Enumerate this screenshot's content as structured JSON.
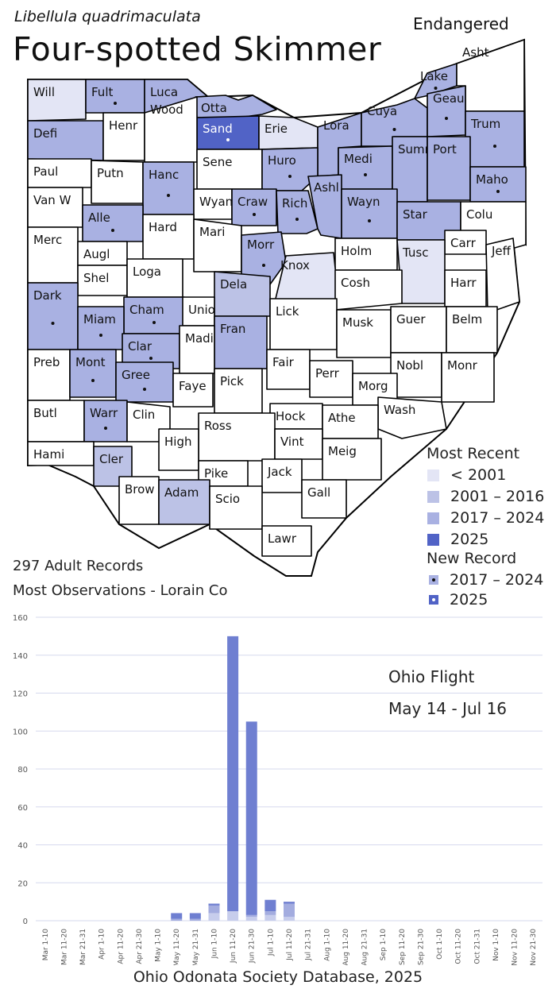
{
  "header": {
    "scientific_name": "Libellula quadrimaculata",
    "common_name": "Four-spotted Skimmer",
    "status": "Endangered"
  },
  "colors": {
    "pre_2001": "#e3e5f5",
    "c2001_2016": "#bcc2e6",
    "c2017_2024": "#a9b1e2",
    "c2025": "#5163c6",
    "none": "#ffffff",
    "outline": "#000000",
    "bar_older": "#c7cdec",
    "bar_2017_2024": "#a3acdf",
    "bar_2025": "#6f7fd1",
    "grid": "#d6d9ee"
  },
  "map": {
    "counties": [
      {
        "name": "Will",
        "cat": "pre_2001",
        "dot": false
      },
      {
        "name": "Fult",
        "cat": "c2017_2024",
        "dot": true
      },
      {
        "name": "Luca",
        "cat": "c2017_2024",
        "dot": false
      },
      {
        "name": "Otta",
        "cat": "c2017_2024",
        "dot": false
      },
      {
        "name": "Sand",
        "cat": "c2025",
        "dot": true
      },
      {
        "name": "Erie",
        "cat": "pre_2001",
        "dot": false
      },
      {
        "name": "Lake",
        "cat": "c2017_2024",
        "dot": true
      },
      {
        "name": "Asht",
        "cat": "none",
        "dot": false
      },
      {
        "name": "Defi",
        "cat": "c2017_2024",
        "dot": false
      },
      {
        "name": "Henr",
        "cat": "none",
        "dot": false
      },
      {
        "name": "Wood",
        "cat": "none",
        "dot": false
      },
      {
        "name": "Lora",
        "cat": "c2017_2024",
        "dot": true
      },
      {
        "name": "Cuya",
        "cat": "c2017_2024",
        "dot": true
      },
      {
        "name": "Geau",
        "cat": "c2017_2024",
        "dot": true
      },
      {
        "name": "Trum",
        "cat": "c2017_2024",
        "dot": true
      },
      {
        "name": "Paul",
        "cat": "none",
        "dot": false
      },
      {
        "name": "Putn",
        "cat": "none",
        "dot": false
      },
      {
        "name": "Sene",
        "cat": "none",
        "dot": false
      },
      {
        "name": "Huro",
        "cat": "c2017_2024",
        "dot": true
      },
      {
        "name": "Medi",
        "cat": "c2017_2024",
        "dot": true
      },
      {
        "name": "Summ",
        "cat": "c2017_2024",
        "dot": false
      },
      {
        "name": "Port",
        "cat": "c2017_2024",
        "dot": false
      },
      {
        "name": "Hanc",
        "cat": "c2017_2024",
        "dot": true
      },
      {
        "name": "Maho",
        "cat": "c2017_2024",
        "dot": true
      },
      {
        "name": "Van W",
        "cat": "none",
        "dot": false
      },
      {
        "name": "Wyan",
        "cat": "none",
        "dot": false
      },
      {
        "name": "Craw",
        "cat": "c2017_2024",
        "dot": true
      },
      {
        "name": "Rich",
        "cat": "c2017_2024",
        "dot": true
      },
      {
        "name": "Ashl",
        "cat": "c2017_2024",
        "dot": false
      },
      {
        "name": "Wayn",
        "cat": "c2017_2024",
        "dot": true
      },
      {
        "name": "Star",
        "cat": "c2017_2024",
        "dot": false
      },
      {
        "name": "Colu",
        "cat": "none",
        "dot": false
      },
      {
        "name": "Alle",
        "cat": "c2017_2024",
        "dot": true
      },
      {
        "name": "Hard",
        "cat": "none",
        "dot": false
      },
      {
        "name": "Merc",
        "cat": "none",
        "dot": false
      },
      {
        "name": "Augl",
        "cat": "none",
        "dot": false
      },
      {
        "name": "Mari",
        "cat": "none",
        "dot": false
      },
      {
        "name": "Morr",
        "cat": "c2017_2024",
        "dot": true
      },
      {
        "name": "Holm",
        "cat": "none",
        "dot": false
      },
      {
        "name": "Carr",
        "cat": "none",
        "dot": false
      },
      {
        "name": "Tusc",
        "cat": "pre_2001",
        "dot": false
      },
      {
        "name": "Jeff",
        "cat": "none",
        "dot": false
      },
      {
        "name": "Shel",
        "cat": "none",
        "dot": false
      },
      {
        "name": "Loga",
        "cat": "none",
        "dot": false
      },
      {
        "name": "Knox",
        "cat": "pre_2001",
        "dot": false
      },
      {
        "name": "Dela",
        "cat": "c2001_2016",
        "dot": false
      },
      {
        "name": "Cosh",
        "cat": "none",
        "dot": false
      },
      {
        "name": "Harr",
        "cat": "none",
        "dot": false
      },
      {
        "name": "Dark",
        "cat": "c2017_2024",
        "dot": true
      },
      {
        "name": "Cham",
        "cat": "c2017_2024",
        "dot": true
      },
      {
        "name": "Unio",
        "cat": "none",
        "dot": false
      },
      {
        "name": "Lick",
        "cat": "none",
        "dot": false
      },
      {
        "name": "Miam",
        "cat": "c2017_2024",
        "dot": true
      },
      {
        "name": "Musk",
        "cat": "none",
        "dot": false
      },
      {
        "name": "Guer",
        "cat": "none",
        "dot": false
      },
      {
        "name": "Belm",
        "cat": "none",
        "dot": false
      },
      {
        "name": "Fran",
        "cat": "c2017_2024",
        "dot": false
      },
      {
        "name": "Clar",
        "cat": "c2017_2024",
        "dot": true
      },
      {
        "name": "Madi",
        "cat": "none",
        "dot": false
      },
      {
        "name": "Fair",
        "cat": "none",
        "dot": false
      },
      {
        "name": "Preb",
        "cat": "none",
        "dot": false
      },
      {
        "name": "Mont",
        "cat": "c2017_2024",
        "dot": true
      },
      {
        "name": "Perr",
        "cat": "none",
        "dot": false
      },
      {
        "name": "Nobl",
        "cat": "none",
        "dot": false
      },
      {
        "name": "Monr",
        "cat": "none",
        "dot": false
      },
      {
        "name": "Gree",
        "cat": "c2017_2024",
        "dot": true
      },
      {
        "name": "Pick",
        "cat": "none",
        "dot": false
      },
      {
        "name": "Morg",
        "cat": "none",
        "dot": false
      },
      {
        "name": "Faye",
        "cat": "none",
        "dot": false
      },
      {
        "name": "Wash",
        "cat": "none",
        "dot": false
      },
      {
        "name": "Butl",
        "cat": "none",
        "dot": false
      },
      {
        "name": "Warr",
        "cat": "c2017_2024",
        "dot": true
      },
      {
        "name": "Clin",
        "cat": "none",
        "dot": false
      },
      {
        "name": "Hock",
        "cat": "none",
        "dot": false
      },
      {
        "name": "Ross",
        "cat": "none",
        "dot": false
      },
      {
        "name": "Athe",
        "cat": "none",
        "dot": false
      },
      {
        "name": "Hami",
        "cat": "none",
        "dot": false
      },
      {
        "name": "High",
        "cat": "none",
        "dot": false
      },
      {
        "name": "Vint",
        "cat": "none",
        "dot": false
      },
      {
        "name": "Cler",
        "cat": "c2001_2016",
        "dot": false
      },
      {
        "name": "Meig",
        "cat": "none",
        "dot": false
      },
      {
        "name": "Pike",
        "cat": "none",
        "dot": false
      },
      {
        "name": "Jack",
        "cat": "none",
        "dot": false
      },
      {
        "name": "Brow",
        "cat": "none",
        "dot": false
      },
      {
        "name": "Adam",
        "cat": "c2001_2016",
        "dot": false
      },
      {
        "name": "Gall",
        "cat": "none",
        "dot": false
      },
      {
        "name": "Scio",
        "cat": "none",
        "dot": false
      },
      {
        "name": "Lawr",
        "cat": "none",
        "dot": false
      }
    ]
  },
  "legend": {
    "most_recent_title": "Most Recent",
    "most_recent": [
      {
        "label": "< 2001",
        "color": "#e3e5f5"
      },
      {
        "label": "2001 – 2016",
        "color": "#bcc2e6"
      },
      {
        "label": "2017 – 2024",
        "color": "#a9b1e2"
      },
      {
        "label": "2025",
        "color": "#5163c6"
      }
    ],
    "new_record_title": "New Record",
    "new_record": [
      {
        "label": "2017 – 2024",
        "color": "#a9b1e2"
      },
      {
        "label": "2025",
        "color": "#5163c6"
      }
    ]
  },
  "stats": {
    "records": "297 Adult Records",
    "most_obs": "Most Observations - Lorain Co"
  },
  "flight": {
    "title": "Ohio Flight",
    "range": "May 14 - Jul 16"
  },
  "footer": "Ohio Odonata Society Database, 2025",
  "chart_data": {
    "type": "bar",
    "stacked": true,
    "categories": [
      "Mar 1-10",
      "Mar 11-20",
      "Mar 21-31",
      "Apr 1-10",
      "Apr 11-20",
      "Apr 21-30",
      "May 1-10",
      "May 11-20",
      "May 21-31",
      "Jun 1-10",
      "Jun 11-20",
      "Jun 21-30",
      "Jul 1-10",
      "Jul 11-20",
      "Jul 21-31",
      "Aug 1-10",
      "Aug 11-20",
      "Aug 21-31",
      "Sep 1-10",
      "Sep 11-20",
      "Sep 21-30",
      "Oct 1-10",
      "Oct 11-20",
      "Oct 21-31",
      "Nov 1-10",
      "Nov 11-20",
      "Nov 21-30"
    ],
    "series": [
      {
        "values": [
          0,
          0,
          0,
          0,
          0,
          0,
          0,
          0,
          0,
          4,
          5,
          2,
          3,
          2,
          0,
          0,
          0,
          0,
          0,
          0,
          0,
          0,
          0,
          0,
          0,
          0,
          0
        ]
      },
      {
        "values": [
          0,
          0,
          0,
          0,
          0,
          0,
          0,
          1,
          1,
          4,
          0,
          1,
          2,
          7,
          0,
          0,
          0,
          0,
          0,
          0,
          0,
          0,
          0,
          0,
          0,
          0,
          0
        ]
      },
      {
        "values": [
          0,
          0,
          0,
          0,
          0,
          0,
          0,
          3,
          3,
          1,
          145,
          102,
          6,
          1,
          0,
          0,
          0,
          0,
          0,
          0,
          0,
          0,
          0,
          0,
          0,
          0,
          0
        ]
      }
    ],
    "ylim": [
      0,
      160
    ],
    "yticks": [
      0,
      20,
      40,
      60,
      80,
      100,
      120,
      140,
      160
    ],
    "grid": true,
    "xlabel": "",
    "ylabel": ""
  }
}
